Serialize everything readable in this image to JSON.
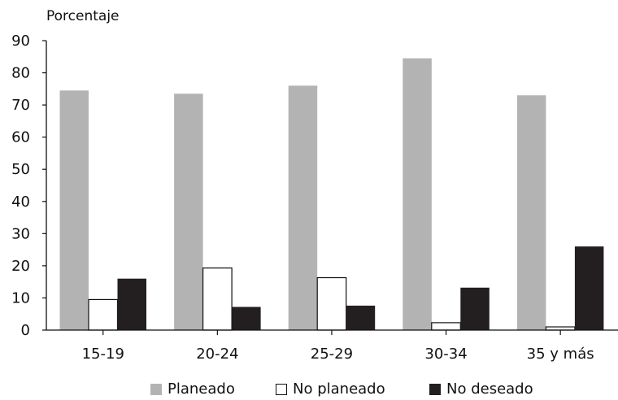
{
  "chart_data": {
    "type": "bar",
    "title": "",
    "ylabel": "Porcentaje",
    "xlabel": "",
    "categories": [
      "15-19",
      "20-24",
      "25-29",
      "30-34",
      "35 y más"
    ],
    "ylim": [
      0,
      90
    ],
    "yticks": [
      0,
      10,
      20,
      30,
      40,
      50,
      60,
      70,
      80,
      90
    ],
    "grid": false,
    "legend_position": "bottom",
    "series": [
      {
        "name": "Planeado",
        "values": [
          74.5,
          73.5,
          76,
          84.5,
          73
        ],
        "color": "#b3b3b3"
      },
      {
        "name": "No planeado",
        "values": [
          9.5,
          19.3,
          16.3,
          2.3,
          1
        ],
        "color": "#ffffff"
      },
      {
        "name": "No deseado",
        "values": [
          16,
          7.2,
          7.6,
          13.2,
          26
        ],
        "color": "#231f20"
      }
    ]
  }
}
